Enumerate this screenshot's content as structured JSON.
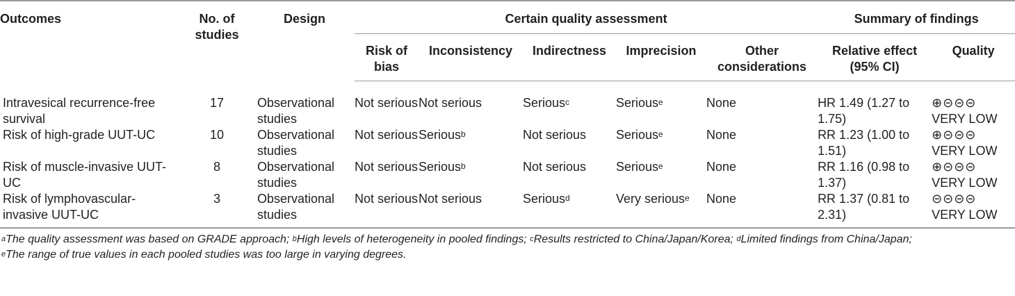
{
  "header": {
    "outcomes": "Outcomes",
    "no_of_studies": "No. of studies",
    "design": "Design",
    "certain_quality_assessment": "Certain quality assessment",
    "summary_of_findings": "Summary of findings",
    "risk_of_bias": "Risk of bias",
    "inconsistency": "Inconsistency",
    "indirectness": "Indirectness",
    "imprecision": "Imprecision",
    "other_considerations": "Other considerations",
    "relative_effect": "Relative effect (95% CI)",
    "quality": "Quality"
  },
  "rows": [
    {
      "outcome": "Intravesical recurrence-free survival",
      "studies": "17",
      "design": "Observational studies",
      "risk_of_bias": "Not serious",
      "inconsistency": "Not serious",
      "inconsistency_sup": "",
      "indirectness": "Serious",
      "indirectness_sup": "c",
      "imprecision": "Serious",
      "imprecision_sup": "e",
      "other": "None",
      "effect": "HR 1.49 (1.27 to 1.75)",
      "quality_symbols": "⊕⊝⊝⊝",
      "quality_label": "VERY LOW"
    },
    {
      "outcome": "Risk of high-grade UUT-UC",
      "studies": "10",
      "design": "Observational studies",
      "risk_of_bias": "Not serious",
      "inconsistency": "Serious",
      "inconsistency_sup": "b",
      "indirectness": "Not serious",
      "indirectness_sup": "",
      "imprecision": "Serious",
      "imprecision_sup": "e",
      "other": "None",
      "effect": "RR 1.23 (1.00 to 1.51)",
      "quality_symbols": "⊕⊝⊝⊝",
      "quality_label": "VERY LOW"
    },
    {
      "outcome": "Risk of muscle-invasive UUT-UC",
      "studies": "8",
      "design": "Observational studies",
      "risk_of_bias": "Not serious",
      "inconsistency": "Serious",
      "inconsistency_sup": "b",
      "indirectness": "Not serious",
      "indirectness_sup": "",
      "imprecision": "Serious",
      "imprecision_sup": "e",
      "other": "None",
      "effect": "RR 1.16 (0.98 to 1.37)",
      "quality_symbols": "⊕⊝⊝⊝",
      "quality_label": "VERY LOW"
    },
    {
      "outcome": "Risk of lymphovascular-invasive UUT-UC",
      "studies": "3",
      "design": "Observational studies",
      "risk_of_bias": "Not serious",
      "inconsistency": "Not serious",
      "inconsistency_sup": "",
      "indirectness": "Serious",
      "indirectness_sup": "d",
      "imprecision": "Very serious",
      "imprecision_sup": "e",
      "other": "None",
      "effect": "RR 1.37 (0.81 to 2.31)",
      "quality_symbols": "⊝⊝⊝⊝",
      "quality_label": "VERY LOW"
    }
  ],
  "footnotes": [
    {
      "sup": "a",
      "text": "The quality assessment was based on GRADE approach; "
    },
    {
      "sup": "b",
      "text": "High levels of heterogeneity in pooled findings; "
    },
    {
      "sup": "c",
      "text": "Results restricted to China/Japan/Korea; "
    },
    {
      "sup": "d",
      "text": "Limited findings from China/Japan;"
    },
    {
      "sup": "e",
      "text": "The range of true values in each pooled studies was too large in varying degrees."
    }
  ]
}
